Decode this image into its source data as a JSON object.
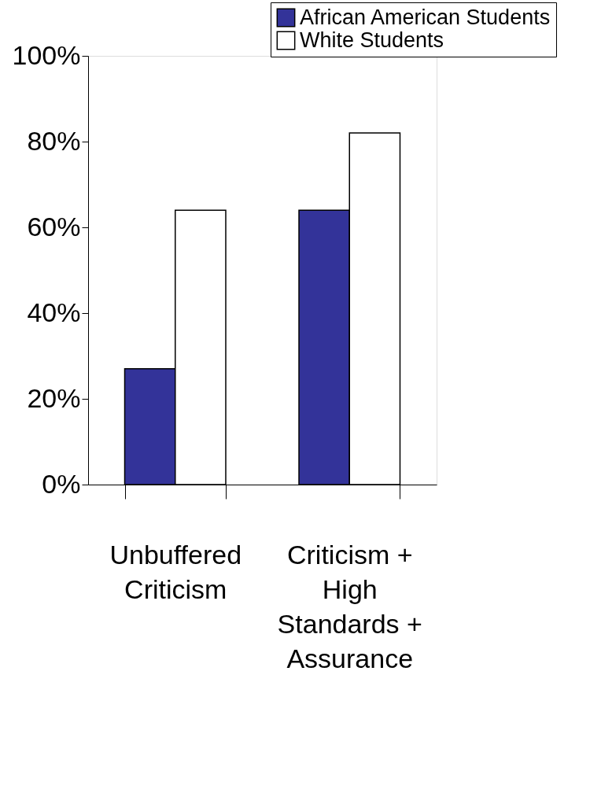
{
  "chart_data": {
    "type": "bar",
    "categories": [
      "Unbuffered\nCriticism",
      "Criticism +\nHigh\nStandards +\nAssurance"
    ],
    "series": [
      {
        "name": "African American Students",
        "color": "#333399",
        "values": [
          27,
          64
        ]
      },
      {
        "name": "White Students",
        "color": "#ffffff",
        "values": [
          64,
          82
        ]
      }
    ],
    "ylim": [
      0,
      100
    ],
    "yticks": [
      {
        "value": 0,
        "label": "0%"
      },
      {
        "value": 20,
        "label": "20%"
      },
      {
        "value": 40,
        "label": "40%"
      },
      {
        "value": 60,
        "label": "60%"
      },
      {
        "value": 80,
        "label": "80%"
      },
      {
        "value": 100,
        "label": "100%"
      }
    ],
    "grid": false,
    "legend": "top right"
  }
}
